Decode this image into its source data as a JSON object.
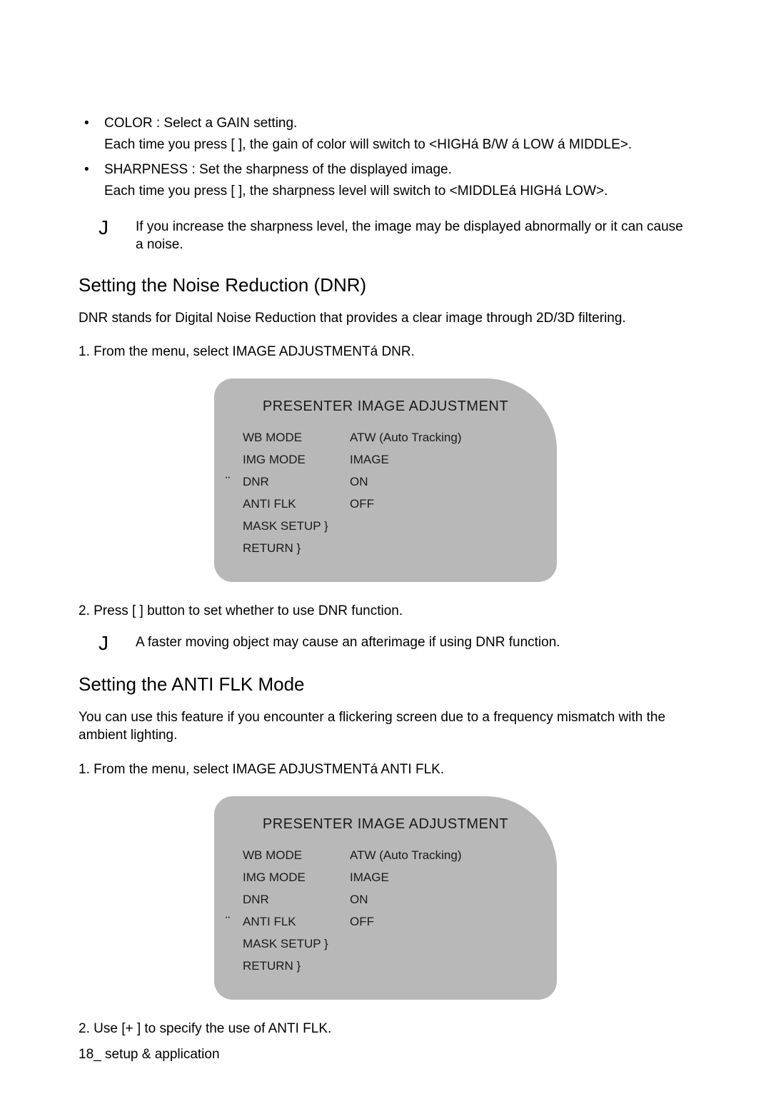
{
  "bullets": {
    "color": {
      "line1": "COLOR : Select a GAIN setting.",
      "line2": "Each time you press [  ], the gain of color will switch to <HIGHá  B/W á  LOW á  MIDDLE>."
    },
    "sharpness": {
      "line1": "SHARPNESS : Set the sharpness of the displayed image.",
      "line2": "Each time you press [  ], the sharpness level will switch to <MIDDLEá  HIGHá  LOW>."
    }
  },
  "note1": {
    "icon": "J",
    "text": "If you increase the sharpness level, the image may be displayed abnormally or it can cause a noise."
  },
  "section_dnr": {
    "heading": "Setting the Noise Reduction (DNR)",
    "intro": "DNR stands for Digital Noise Reduction that provides a clear image through 2D/3D filtering.",
    "step1": "1.  From the menu, select IMAGE ADJUSTMENTá  DNR.",
    "step2": "2.  Press [ ] button to set whether to use DNR function."
  },
  "menu_dnr": {
    "title": "PRESENTER IMAGE ADJUSTMENT",
    "pointer_index": 2,
    "rows": [
      {
        "label": "WB MODE",
        "value": "ATW (Auto Tracking)"
      },
      {
        "label": "IMG MODE",
        "value": "IMAGE"
      },
      {
        "label": "DNR",
        "value": "ON"
      },
      {
        "label": "ANTI FLK",
        "value": "OFF"
      },
      {
        "label": "MASK SETUP  }",
        "value": ""
      },
      {
        "label": "RETURN  }",
        "value": ""
      }
    ]
  },
  "note2": {
    "icon": "J",
    "text": "A faster moving object may cause an afterimage if using DNR function."
  },
  "section_flk": {
    "heading": "Setting the ANTI FLK Mode",
    "intro": "You can use this feature if you encounter a flickering screen due to a frequency mismatch with the ambient lighting.",
    "step1": "1.  From the menu, select IMAGE ADJUSTMENTá  ANTI FLK.",
    "step2": "2.  Use [+ ] to specify the use of ANTI FLK."
  },
  "menu_flk": {
    "title": "PRESENTER IMAGE ADJUSTMENT",
    "pointer_index": 3,
    "rows": [
      {
        "label": "WB MODE",
        "value": "ATW (Auto Tracking)"
      },
      {
        "label": "IMG MODE",
        "value": "IMAGE"
      },
      {
        "label": "DNR",
        "value": "ON"
      },
      {
        "label": "ANTI FLK",
        "value": "OFF"
      },
      {
        "label": "MASK SETUP  }",
        "value": ""
      },
      {
        "label": "RETURN  }",
        "value": ""
      }
    ]
  },
  "footer": {
    "page": "18_",
    "label": " setup & application"
  },
  "colors": {
    "menu_bg": "#b8b8b8",
    "text": "#000000",
    "page_bg": "#ffffff"
  }
}
